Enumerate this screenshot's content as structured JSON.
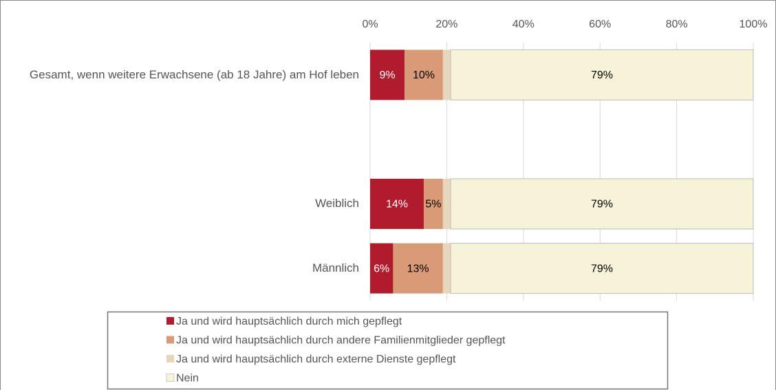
{
  "chart_data": {
    "type": "stacked_barh",
    "categories": [
      "Gesamt, wenn weitere Erwachsene (ab 18 Jahre) am Hof leben",
      null,
      "Weiblich",
      "Männlich"
    ],
    "series": [
      {
        "name": "Ja und wird hauptsächlich durch mich gepflegt",
        "color": "#b01c2e",
        "label_color": "#ffffff",
        "values": [
          9,
          null,
          14,
          6
        ],
        "value_labels": [
          "9%",
          null,
          "14%",
          "6%"
        ]
      },
      {
        "name": "Ja und wird hauptsächlich durch andere Familienmitglieder gepflegt",
        "color": "#d99a78",
        "label_color": "#000000",
        "values": [
          10,
          null,
          5,
          13
        ],
        "value_labels": [
          "10%",
          null,
          "5%",
          "13%"
        ]
      },
      {
        "name": "Ja und wird hauptsächlich durch externe Dienste gepflegt",
        "color": "#e8d6bc",
        "label_color": "#000000",
        "values": [
          2,
          null,
          2,
          2
        ]
      },
      {
        "name": "Nein",
        "color": "#f6f3d9",
        "label_color": "#000000",
        "values": [
          79,
          null,
          79,
          79
        ],
        "value_labels": [
          "79%",
          null,
          "79%",
          "79%"
        ]
      }
    ],
    "xlim": [
      0,
      100
    ],
    "xticks": [
      {
        "value": 0,
        "label": "0%"
      },
      {
        "value": 20,
        "label": "20%"
      },
      {
        "value": 40,
        "label": "40%"
      },
      {
        "value": 60,
        "label": "60%"
      },
      {
        "value": 80,
        "label": "80%"
      },
      {
        "value": 100,
        "label": "100%"
      }
    ],
    "grid": true
  }
}
